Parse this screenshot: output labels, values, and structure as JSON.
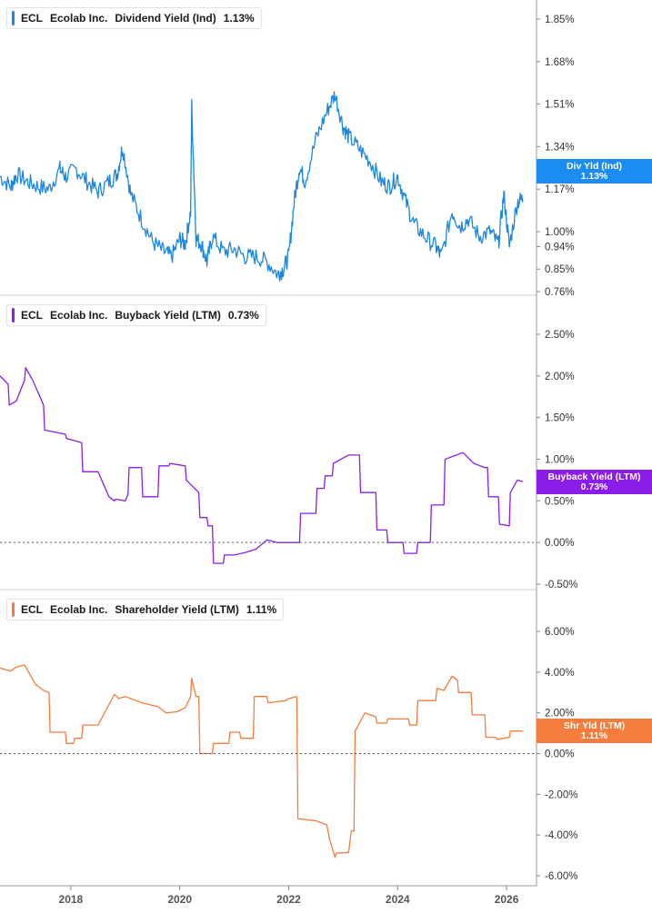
{
  "panels": [
    {
      "ticker": "ECL",
      "company": "Ecolab Inc.",
      "metric": "Dividend Yield (Ind)",
      "value": "1.13%",
      "tag_label": "Div Yld (Ind)",
      "tag_value": "1.13%",
      "color": "#1c87e0",
      "tag_color": "#1c8cf0"
    },
    {
      "ticker": "ECL",
      "company": "Ecolab Inc.",
      "metric": "Buyback Yield (LTM)",
      "value": "0.73%",
      "tag_label": "Buyback Yield (LTM)",
      "tag_value": "0.73%",
      "color": "#8a1ee8",
      "tag_color": "#8a1ee8"
    },
    {
      "ticker": "ECL",
      "company": "Ecolab Inc.",
      "metric": "Shareholder Yield (LTM)",
      "value": "1.11%",
      "tag_label": "Shr Yld (LTM)",
      "tag_value": "1.11%",
      "color": "#f47c3c",
      "tag_color": "#f47c3c"
    }
  ],
  "chart_data": [
    {
      "type": "line",
      "series": [
        {
          "name": "Dividend Yield (Ind)",
          "x": [
            2016.7,
            2016.9,
            2017.0,
            2017.2,
            2017.4,
            2017.6,
            2017.8,
            2017.9,
            2018.1,
            2018.3,
            2018.5,
            2018.7,
            2018.85,
            2018.95,
            2019.1,
            2019.3,
            2019.5,
            2019.7,
            2019.85,
            2020.0,
            2020.1,
            2020.2,
            2020.22,
            2020.3,
            2020.4,
            2020.5,
            2020.6,
            2020.8,
            2021.0,
            2021.2,
            2021.4,
            2021.6,
            2021.8,
            2021.9,
            2022.0,
            2022.1,
            2022.2,
            2022.3,
            2022.5,
            2022.7,
            2022.85,
            2023.0,
            2023.1,
            2023.3,
            2023.5,
            2023.7,
            2023.85,
            2024.0,
            2024.15,
            2024.3,
            2024.5,
            2024.7,
            2024.8,
            2025.0,
            2025.15,
            2025.3,
            2025.5,
            2025.7,
            2025.85,
            2025.95,
            2026.05,
            2026.2,
            2026.3
          ],
          "y": [
            1.22,
            1.18,
            1.23,
            1.2,
            1.18,
            1.17,
            1.25,
            1.22,
            1.25,
            1.2,
            1.16,
            1.2,
            1.23,
            1.34,
            1.15,
            1.05,
            0.96,
            0.92,
            0.9,
            0.97,
            0.95,
            1.08,
            1.5,
            0.97,
            0.95,
            0.88,
            0.98,
            0.92,
            0.93,
            0.9,
            0.9,
            0.88,
            0.83,
            0.85,
            0.9,
            1.12,
            1.26,
            1.2,
            1.37,
            1.48,
            1.55,
            1.42,
            1.38,
            1.33,
            1.28,
            1.2,
            1.18,
            1.22,
            1.12,
            1.03,
            0.98,
            0.94,
            0.9,
            1.08,
            1.02,
            1.05,
            0.98,
            1.0,
            0.95,
            1.15,
            0.94,
            1.12,
            1.13
          ]
        }
      ],
      "y_ticks": [
        "1.85%",
        "1.68%",
        "1.51%",
        "1.34%",
        "1.17%",
        "1.00%",
        "0.94%",
        "0.85%",
        "0.76%"
      ],
      "ylim": [
        0.76,
        1.9
      ],
      "grid": false
    },
    {
      "type": "line",
      "series": [
        {
          "name": "Buyback Yield (LTM)",
          "x": [
            2016.7,
            2016.85,
            2016.87,
            2017.0,
            2017.15,
            2017.17,
            2017.3,
            2017.5,
            2017.52,
            2017.9,
            2017.92,
            2018.2,
            2018.22,
            2018.5,
            2018.7,
            2018.8,
            2018.82,
            2019.0,
            2019.05,
            2019.07,
            2019.3,
            2019.32,
            2019.6,
            2019.62,
            2019.8,
            2019.82,
            2020.1,
            2020.12,
            2020.35,
            2020.37,
            2020.5,
            2020.52,
            2020.6,
            2020.62,
            2020.8,
            2020.82,
            2021.0,
            2021.2,
            2021.4,
            2021.6,
            2021.8,
            2021.9,
            2022.2,
            2022.22,
            2022.5,
            2022.52,
            2022.65,
            2022.67,
            2022.8,
            2022.82,
            2023.1,
            2023.3,
            2023.32,
            2023.6,
            2023.62,
            2023.8,
            2023.82,
            2024.1,
            2024.12,
            2024.35,
            2024.37,
            2024.6,
            2024.62,
            2024.85,
            2024.87,
            2025.2,
            2025.4,
            2025.6,
            2025.65,
            2025.67,
            2025.85,
            2025.87,
            2026.05,
            2026.07,
            2026.2,
            2026.3
          ],
          "y": [
            2.0,
            1.9,
            1.65,
            1.7,
            1.95,
            2.1,
            1.95,
            1.65,
            1.35,
            1.3,
            1.25,
            1.2,
            0.85,
            0.85,
            0.55,
            0.5,
            0.52,
            0.5,
            0.58,
            0.9,
            0.9,
            0.55,
            0.55,
            0.92,
            0.92,
            0.95,
            0.92,
            0.75,
            0.6,
            0.3,
            0.3,
            0.2,
            0.2,
            -0.25,
            -0.25,
            -0.15,
            -0.15,
            -0.12,
            -0.08,
            0.03,
            0.0,
            0.0,
            0.0,
            0.35,
            0.35,
            0.65,
            0.65,
            0.8,
            0.8,
            0.95,
            1.05,
            1.05,
            0.6,
            0.6,
            0.15,
            0.15,
            0.0,
            0.0,
            -0.13,
            -0.13,
            0.0,
            0.0,
            0.45,
            0.45,
            1.0,
            1.08,
            0.95,
            0.9,
            0.9,
            0.55,
            0.55,
            0.22,
            0.2,
            0.6,
            0.75,
            0.73
          ]
        }
      ],
      "y_ticks": [
        "2.50%",
        "2.00%",
        "1.50%",
        "1.00%",
        "0.50%",
        "0.00%",
        "-0.50%"
      ],
      "ylim": [
        -0.55,
        2.75
      ],
      "zero_line": true,
      "grid": false
    },
    {
      "type": "line",
      "series": [
        {
          "name": "Shareholder Yield (LTM)",
          "x": [
            2016.7,
            2016.9,
            2017.0,
            2017.15,
            2017.3,
            2017.35,
            2017.5,
            2017.6,
            2017.62,
            2017.9,
            2017.92,
            2018.05,
            2018.07,
            2018.2,
            2018.22,
            2018.5,
            2018.8,
            2018.85,
            2018.87,
            2019.0,
            2019.3,
            2019.6,
            2019.75,
            2019.95,
            2020.1,
            2020.2,
            2020.22,
            2020.3,
            2020.35,
            2020.37,
            2020.6,
            2020.62,
            2020.9,
            2020.92,
            2021.1,
            2021.12,
            2021.35,
            2021.37,
            2021.6,
            2021.62,
            2021.95,
            2022.0,
            2022.15,
            2022.17,
            2022.5,
            2022.7,
            2022.75,
            2022.85,
            2022.87,
            2023.1,
            2023.15,
            2023.2,
            2023.22,
            2023.4,
            2023.6,
            2023.62,
            2023.8,
            2023.82,
            2024.2,
            2024.22,
            2024.35,
            2024.37,
            2024.7,
            2024.72,
            2024.85,
            2025.0,
            2025.1,
            2025.12,
            2025.35,
            2025.37,
            2025.6,
            2025.62,
            2025.8,
            2025.82,
            2026.05,
            2026.07,
            2026.3
          ],
          "y": [
            4.2,
            4.05,
            4.25,
            4.35,
            3.65,
            3.4,
            3.1,
            3.0,
            1.05,
            1.05,
            0.5,
            0.5,
            0.75,
            0.75,
            1.4,
            1.4,
            2.9,
            2.8,
            2.7,
            2.8,
            2.5,
            2.3,
            2.0,
            2.05,
            2.25,
            2.8,
            3.7,
            2.8,
            2.8,
            0.0,
            0.0,
            0.5,
            0.5,
            1.05,
            1.05,
            0.75,
            0.75,
            2.8,
            2.8,
            2.5,
            2.6,
            2.7,
            2.8,
            -3.2,
            -3.3,
            -3.5,
            -4.2,
            -5.1,
            -4.9,
            -4.85,
            -3.8,
            -3.8,
            1.1,
            2.0,
            1.8,
            1.5,
            1.5,
            1.7,
            1.7,
            1.4,
            1.4,
            2.6,
            2.6,
            3.2,
            3.1,
            3.8,
            3.6,
            3.0,
            3.0,
            1.9,
            1.9,
            0.8,
            0.8,
            0.7,
            0.8,
            1.1,
            1.11
          ]
        }
      ],
      "y_ticks": [
        "6.00%",
        "4.00%",
        "2.00%",
        "0.00%",
        "-2.00%",
        "-4.00%",
        "-6.00%"
      ],
      "ylim": [
        -6.0,
        6.0
      ],
      "zero_line": true,
      "grid": false
    }
  ],
  "x_axis": {
    "ticks": [
      "2018",
      "2020",
      "2022",
      "2024",
      "2026"
    ],
    "tick_values": [
      2018,
      2020,
      2022,
      2024,
      2026
    ],
    "xlim": [
      2016.7,
      2026.55
    ]
  }
}
